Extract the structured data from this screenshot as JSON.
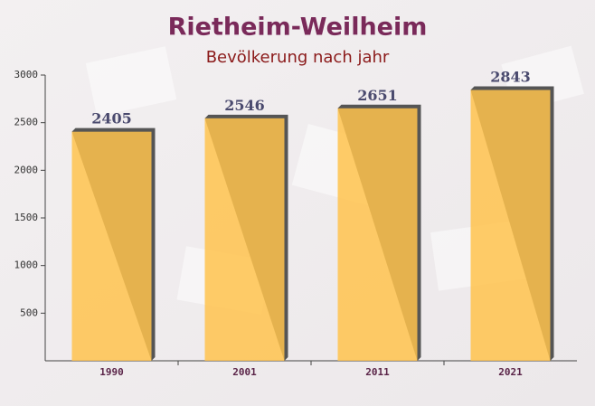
{
  "chart_data": {
    "type": "bar",
    "title": "Rietheim-Weilheim",
    "subtitle": "Bevölkerung nach jahr",
    "categories": [
      "1990",
      "2001",
      "2011",
      "2021"
    ],
    "values": [
      2405,
      2546,
      2651,
      2843
    ],
    "color": "#ffc34d",
    "ylim": [
      0,
      3000
    ],
    "yticks": [
      500,
      1000,
      1500,
      2000,
      2500,
      3000
    ]
  }
}
